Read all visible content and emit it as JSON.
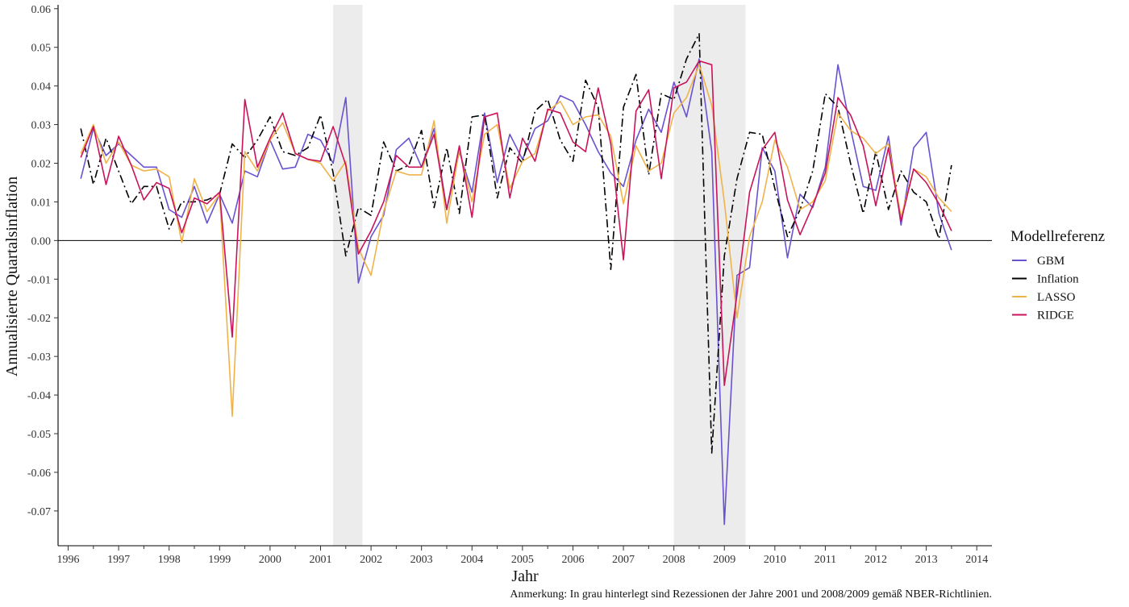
{
  "chart_data": {
    "type": "line",
    "title": "",
    "xlabel": "Jahr",
    "ylabel": "Annualisierte Quartalsinflation",
    "xlim": [
      1995.8,
      2014.3
    ],
    "ylim": [
      -0.079,
      0.061
    ],
    "x_ticks": [
      "1996",
      "1997",
      "1998",
      "1999",
      "2000",
      "2001",
      "2002",
      "2003",
      "2004",
      "2005",
      "2006",
      "2007",
      "2008",
      "2009",
      "2010",
      "2011",
      "2012",
      "2013",
      "2014"
    ],
    "y_ticks": [
      "-0.07",
      "-0.06",
      "-0.05",
      "-0.04",
      "-0.03",
      "-0.02",
      "-0.01",
      "0.00",
      "0.01",
      "0.02",
      "0.03",
      "0.04",
      "0.05",
      "0.06"
    ],
    "grid": false,
    "zero_line": true,
    "shaded_regions": [
      {
        "from": 2001.25,
        "to": 2001.83
      },
      {
        "from": 2008.0,
        "to": 2009.42
      }
    ],
    "shade_color": "#ececec",
    "x": [
      1996.25,
      1996.5,
      1996.75,
      1997.0,
      1997.25,
      1997.5,
      1997.75,
      1998.0,
      1998.25,
      1998.5,
      1998.75,
      1999.0,
      1999.25,
      1999.5,
      1999.75,
      2000.0,
      2000.25,
      2000.5,
      2000.75,
      2001.0,
      2001.25,
      2001.5,
      2001.75,
      2002.0,
      2002.25,
      2002.5,
      2002.75,
      2003.0,
      2003.25,
      2003.5,
      2003.75,
      2004.0,
      2004.25,
      2004.5,
      2004.75,
      2005.0,
      2005.25,
      2005.5,
      2005.75,
      2006.0,
      2006.25,
      2006.5,
      2006.75,
      2007.0,
      2007.25,
      2007.5,
      2007.75,
      2008.0,
      2008.25,
      2008.5,
      2008.75,
      2009.0,
      2009.25,
      2009.5,
      2009.75,
      2010.0,
      2010.25,
      2010.5,
      2010.75,
      2011.0,
      2011.25,
      2011.5,
      2011.75,
      2012.0,
      2012.25,
      2012.5,
      2012.75,
      2013.0,
      2013.25,
      2013.5
    ],
    "series": [
      {
        "name": "GBM",
        "color": "#6a51d0",
        "dash": "",
        "values": [
          0.016,
          0.029,
          0.022,
          0.025,
          0.022,
          0.019,
          0.019,
          0.008,
          0.006,
          0.014,
          0.0045,
          0.012,
          0.0045,
          0.018,
          0.0165,
          0.026,
          0.0185,
          0.019,
          0.0275,
          0.026,
          0.02,
          0.037,
          -0.011,
          0.001,
          0.0065,
          0.0235,
          0.0265,
          0.019,
          0.029,
          0.008,
          0.023,
          0.0125,
          0.033,
          0.015,
          0.0275,
          0.021,
          0.029,
          0.031,
          0.0375,
          0.036,
          0.03,
          0.023,
          0.0175,
          0.014,
          0.026,
          0.034,
          0.028,
          0.041,
          0.032,
          0.047,
          0.023,
          -0.0735,
          -0.009,
          -0.007,
          0.024,
          0.018,
          -0.0045,
          0.012,
          0.0085,
          0.019,
          0.0455,
          0.029,
          0.014,
          0.013,
          0.027,
          0.004,
          0.024,
          0.028,
          0.007,
          -0.0025
        ]
      },
      {
        "name": "Inflation",
        "color": "#000000",
        "dash": "10,4,2,4",
        "values": [
          0.029,
          0.0145,
          0.0265,
          0.018,
          0.0095,
          0.014,
          0.014,
          0.003,
          0.01,
          0.01,
          0.0105,
          0.012,
          0.025,
          0.0215,
          0.026,
          0.032,
          0.023,
          0.022,
          0.024,
          0.0325,
          0.0175,
          -0.004,
          0.0085,
          0.0065,
          0.0255,
          0.018,
          0.0195,
          0.0285,
          0.0085,
          0.024,
          0.007,
          0.032,
          0.0325,
          0.011,
          0.024,
          0.02,
          0.0335,
          0.0365,
          0.026,
          0.0205,
          0.0415,
          0.0345,
          -0.0075,
          0.0345,
          0.043,
          0.017,
          0.038,
          0.0365,
          0.047,
          0.0535,
          -0.055,
          -0.004,
          0.016,
          0.028,
          0.0275,
          0.0135,
          0.001,
          0.008,
          0.018,
          0.038,
          0.0345,
          0.02,
          0.007,
          0.023,
          0.008,
          0.018,
          0.0125,
          0.01,
          0.0005,
          0.0195
        ]
      },
      {
        "name": "LASSO",
        "color": "#f0b34a",
        "dash": "",
        "values": [
          0.0225,
          0.03,
          0.02,
          0.0255,
          0.0195,
          0.018,
          0.0185,
          0.0165,
          -0.0005,
          0.016,
          0.0075,
          0.012,
          -0.0455,
          0.023,
          0.018,
          0.026,
          0.0305,
          0.0225,
          0.021,
          0.02,
          0.0155,
          0.0205,
          -0.002,
          -0.009,
          0.0075,
          0.018,
          0.017,
          0.017,
          0.031,
          0.0045,
          0.0235,
          0.01,
          0.0275,
          0.03,
          0.0135,
          0.0205,
          0.0225,
          0.0335,
          0.036,
          0.03,
          0.032,
          0.0325,
          0.027,
          0.0095,
          0.0245,
          0.018,
          0.02,
          0.033,
          0.037,
          0.0455,
          0.035,
          0.01,
          -0.02,
          0.001,
          0.01,
          0.026,
          0.019,
          0.008,
          0.01,
          0.0155,
          0.033,
          0.0285,
          0.0265,
          0.0225,
          0.025,
          0.006,
          0.0185,
          0.0165,
          0.011,
          0.0075
        ]
      },
      {
        "name": "RIDGE",
        "color": "#c8145a",
        "dash": "",
        "values": [
          0.0215,
          0.0295,
          0.0145,
          0.027,
          0.0195,
          0.0105,
          0.015,
          0.0135,
          0.002,
          0.011,
          0.0095,
          0.0125,
          -0.025,
          0.0365,
          0.019,
          0.0265,
          0.033,
          0.0225,
          0.021,
          0.0205,
          0.0295,
          0.0195,
          -0.0035,
          0.0025,
          0.01,
          0.022,
          0.019,
          0.019,
          0.0275,
          0.008,
          0.0245,
          0.006,
          0.032,
          0.033,
          0.011,
          0.0265,
          0.0205,
          0.034,
          0.033,
          0.0255,
          0.023,
          0.0395,
          0.025,
          -0.005,
          0.0335,
          0.039,
          0.016,
          0.0395,
          0.041,
          0.0465,
          0.0455,
          -0.0375,
          -0.014,
          0.0125,
          0.0235,
          0.028,
          0.0105,
          0.0015,
          0.009,
          0.0175,
          0.037,
          0.0325,
          0.0245,
          0.009,
          0.024,
          0.005,
          0.0185,
          0.015,
          0.0095,
          0.0025
        ]
      }
    ],
    "legend": {
      "title": "Modellreferenz",
      "position": "right"
    },
    "annotation": "Anmerkung: In grau hinterlegt sind Rezessionen der Jahre 2001 und 2008/2009 gemäß NBER-Richtlinien."
  }
}
